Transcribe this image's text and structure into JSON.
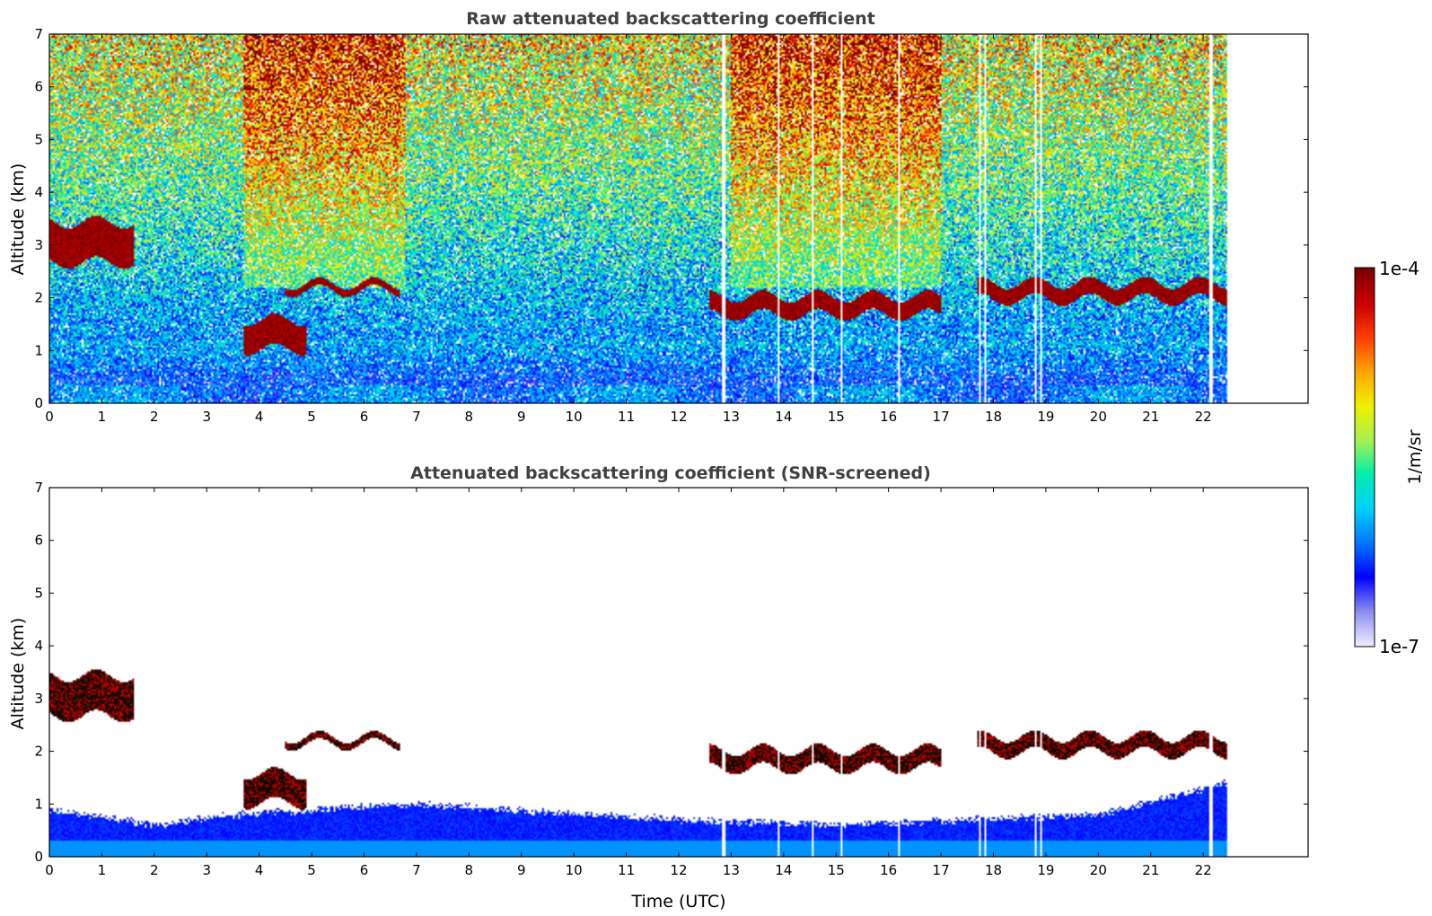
{
  "chart_data": [
    {
      "type": "heatmap",
      "title": "Raw attenuated backscattering coefficient",
      "xlabel": "",
      "ylabel": "Altitude (km)",
      "xlim": [
        0,
        24
      ],
      "ylim": [
        0,
        7
      ],
      "xticks": [
        "0",
        "1",
        "2",
        "3",
        "4",
        "5",
        "6",
        "7",
        "8",
        "9",
        "10",
        "11",
        "12",
        "13",
        "14",
        "15",
        "16",
        "17",
        "18",
        "19",
        "20",
        "21",
        "22"
      ],
      "yticks": [
        "0",
        "1",
        "2",
        "3",
        "4",
        "5",
        "6",
        "7"
      ],
      "data_extent_x": [
        0,
        22.45
      ],
      "gaps_x": [
        12.85,
        13.9,
        14.55,
        15.1,
        16.2,
        17.75,
        17.85,
        18.8,
        18.9,
        22.15
      ],
      "cloud_layers": [
        {
          "x": [
            0.0,
            1.6
          ],
          "alt": [
            2.5,
            3.6
          ]
        },
        {
          "x": [
            3.7,
            4.9
          ],
          "alt": [
            0.9,
            1.7
          ]
        },
        {
          "x": [
            4.5,
            6.7
          ],
          "alt": [
            2.1,
            2.3
          ]
        },
        {
          "x": [
            12.6,
            17.0
          ],
          "alt": [
            1.6,
            2.1
          ]
        },
        {
          "x": [
            17.7,
            22.45
          ],
          "alt": [
            1.9,
            2.35
          ]
        }
      ],
      "high_noise_periods_x": [
        [
          3.7,
          6.8
        ],
        [
          13.0,
          17.0
        ]
      ]
    },
    {
      "type": "heatmap",
      "title": "Attenuated backscattering coefficient (SNR-screened)",
      "xlabel": "Time (UTC)",
      "ylabel": "Altitude (km)",
      "xlim": [
        0,
        24
      ],
      "ylim": [
        0,
        7
      ],
      "xticks": [
        "0",
        "1",
        "2",
        "3",
        "4",
        "5",
        "6",
        "7",
        "8",
        "9",
        "10",
        "11",
        "12",
        "13",
        "14",
        "15",
        "16",
        "17",
        "18",
        "19",
        "20",
        "21",
        "22"
      ],
      "yticks": [
        "0",
        "1",
        "2",
        "3",
        "4",
        "5",
        "6",
        "7"
      ],
      "data_extent_x": [
        0,
        22.45
      ],
      "boundary_layer_top_km": [
        [
          0,
          0.9
        ],
        [
          2,
          0.6
        ],
        [
          3.5,
          0.8
        ],
        [
          7,
          1.0
        ],
        [
          12,
          0.7
        ],
        [
          15,
          0.6
        ],
        [
          20,
          0.8
        ],
        [
          22.45,
          1.4
        ]
      ]
    }
  ],
  "colorbar": {
    "label": "1/m/sr",
    "max_label": "1e-4",
    "min_label": "1e-7",
    "scale": "log",
    "range": [
      1e-07,
      0.0001
    ],
    "colors": [
      "#eeeeff",
      "#8c8cf0",
      "#0000ff",
      "#0078ff",
      "#00d2ff",
      "#00eeaa",
      "#aaf050",
      "#f0f000",
      "#ffa500",
      "#ff3c00",
      "#c80000",
      "#7a0000"
    ]
  }
}
